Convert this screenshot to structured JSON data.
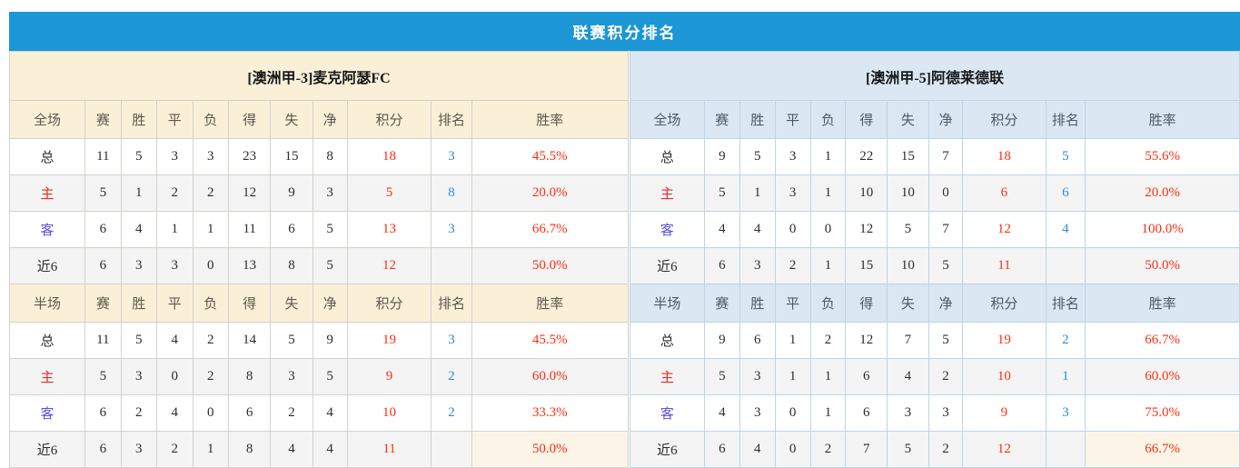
{
  "title": "联赛积分排名",
  "colors": {
    "title_bar": "#1c96d5",
    "left_header_bg": "#faf0d8",
    "right_header_bg": "#dbe7f2",
    "points_and_rate_color": "#fe2e11",
    "rank_color": "#2f8bd6",
    "home_label_color": "#e22b2b",
    "away_label_color": "#5a52d5",
    "recent_rate_cell_bg": "#fcf5e7"
  },
  "columns": {
    "first_full": "全场",
    "first_half": "半场",
    "stats": [
      "赛",
      "胜",
      "平",
      "负",
      "得",
      "失",
      "净",
      "积分",
      "排名",
      "胜率"
    ]
  },
  "teams": [
    {
      "name": "[澳洲甲-3]麦克阿瑟FC",
      "full": {
        "rows": [
          {
            "label": "总",
            "type": "total",
            "stats": [
              11,
              5,
              3,
              3,
              23,
              15,
              8
            ],
            "points": 18,
            "rank": "3",
            "rate": "45.5%"
          },
          {
            "label": "主",
            "type": "home",
            "stats": [
              5,
              1,
              2,
              2,
              12,
              9,
              3
            ],
            "points": 5,
            "rank": "8",
            "rate": "20.0%"
          },
          {
            "label": "客",
            "type": "away",
            "stats": [
              6,
              4,
              1,
              1,
              11,
              6,
              5
            ],
            "points": 13,
            "rank": "3",
            "rate": "66.7%"
          },
          {
            "label": "近6",
            "type": "recent",
            "stats": [
              6,
              3,
              3,
              0,
              13,
              8,
              5
            ],
            "points": 12,
            "rank": "",
            "rate": "50.0%"
          }
        ]
      },
      "half": {
        "rows": [
          {
            "label": "总",
            "type": "total",
            "stats": [
              11,
              5,
              4,
              2,
              14,
              5,
              9
            ],
            "points": 19,
            "rank": "3",
            "rate": "45.5%"
          },
          {
            "label": "主",
            "type": "home",
            "stats": [
              5,
              3,
              0,
              2,
              8,
              3,
              5
            ],
            "points": 9,
            "rank": "2",
            "rate": "60.0%"
          },
          {
            "label": "客",
            "type": "away",
            "stats": [
              6,
              2,
              4,
              0,
              6,
              2,
              4
            ],
            "points": 10,
            "rank": "2",
            "rate": "33.3%"
          },
          {
            "label": "近6",
            "type": "recent",
            "stats": [
              6,
              3,
              2,
              1,
              8,
              4,
              4
            ],
            "points": 11,
            "rank": "",
            "rate": "50.0%"
          }
        ]
      }
    },
    {
      "name": "[澳洲甲-5]阿德莱德联",
      "full": {
        "rows": [
          {
            "label": "总",
            "type": "total",
            "stats": [
              9,
              5,
              3,
              1,
              22,
              15,
              7
            ],
            "points": 18,
            "rank": "5",
            "rate": "55.6%"
          },
          {
            "label": "主",
            "type": "home",
            "stats": [
              5,
              1,
              3,
              1,
              10,
              10,
              0
            ],
            "points": 6,
            "rank": "6",
            "rate": "20.0%"
          },
          {
            "label": "客",
            "type": "away",
            "stats": [
              4,
              4,
              0,
              0,
              12,
              5,
              7
            ],
            "points": 12,
            "rank": "4",
            "rate": "100.0%"
          },
          {
            "label": "近6",
            "type": "recent",
            "stats": [
              6,
              3,
              2,
              1,
              15,
              10,
              5
            ],
            "points": 11,
            "rank": "",
            "rate": "50.0%"
          }
        ]
      },
      "half": {
        "rows": [
          {
            "label": "总",
            "type": "total",
            "stats": [
              9,
              6,
              1,
              2,
              12,
              7,
              5
            ],
            "points": 19,
            "rank": "2",
            "rate": "66.7%"
          },
          {
            "label": "主",
            "type": "home",
            "stats": [
              5,
              3,
              1,
              1,
              6,
              4,
              2
            ],
            "points": 10,
            "rank": "1",
            "rate": "60.0%"
          },
          {
            "label": "客",
            "type": "away",
            "stats": [
              4,
              3,
              0,
              1,
              6,
              3,
              3
            ],
            "points": 9,
            "rank": "3",
            "rate": "75.0%"
          },
          {
            "label": "近6",
            "type": "recent",
            "stats": [
              6,
              4,
              0,
              2,
              7,
              5,
              2
            ],
            "points": 12,
            "rank": "",
            "rate": "66.7%"
          }
        ]
      }
    }
  ]
}
